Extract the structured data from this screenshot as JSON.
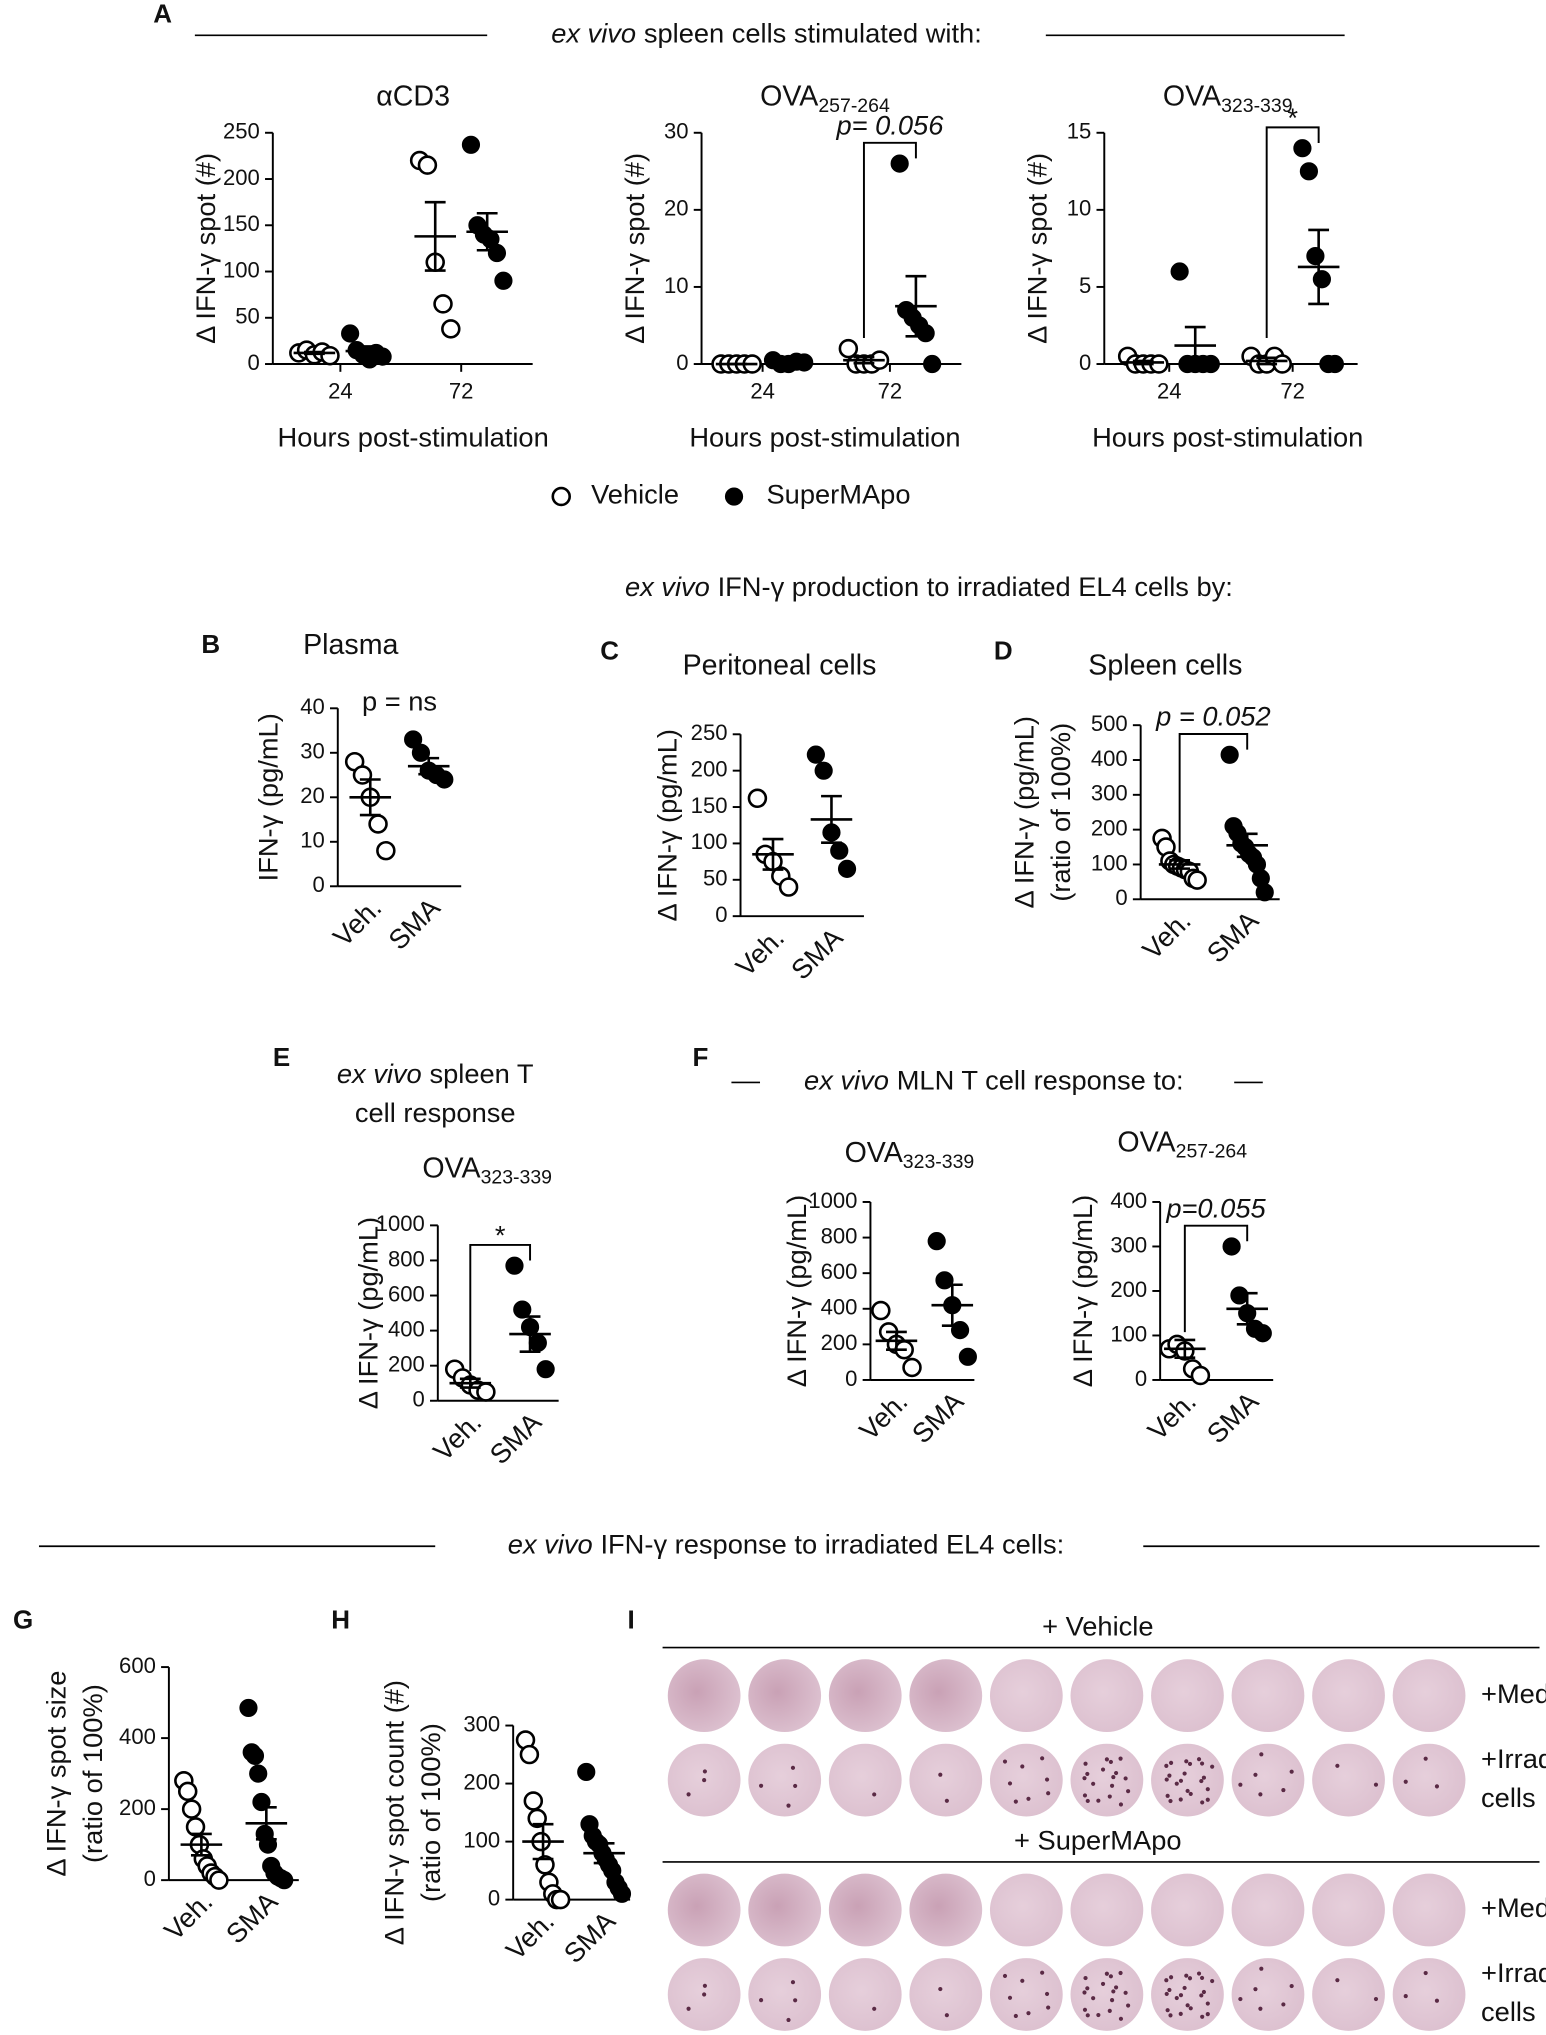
{
  "panels": [
    "A",
    "B",
    "C",
    "D",
    "E",
    "F",
    "G",
    "H",
    "I"
  ],
  "headers": [
    {
      "italic": "ex vivo",
      "text": "spleen cells stimulated with:"
    },
    {
      "italic": "ex vivo",
      "text": "IFN-γ production to irradiated EL4 cells by:"
    },
    {
      "italic": "ex vivo",
      "text": "spleen T",
      "line2": "cell response"
    },
    {
      "italic": "ex vivo",
      "text": "MLN T cell response to:"
    },
    {
      "italic": "ex vivo",
      "text": "IFN-γ response to irradiated EL4 cells:"
    }
  ],
  "legend": [
    {
      "name": "Vehicle",
      "style": "open"
    },
    {
      "name": "SuperMApo",
      "style": "filled"
    }
  ],
  "chart_data": [
    {
      "type": "dot",
      "title": "αCD3",
      "xlabel": "Hours post-stimulation",
      "ylabel": [
        "Δ IFN-γ spot (#)"
      ],
      "categories": [
        "24",
        "72"
      ],
      "ylim": [
        0,
        250
      ],
      "yticks": [
        0,
        50,
        100,
        150,
        200,
        250
      ],
      "groups": [
        {
          "style": "open",
          "values": [
            12,
            15,
            10,
            13,
            9
          ],
          "mean": 12,
          "sem": 1
        },
        {
          "style": "filled",
          "values": [
            33,
            15,
            10,
            5,
            12,
            8
          ],
          "mean": 14,
          "sem": 5
        },
        {
          "style": "open",
          "values": [
            220,
            215,
            110,
            65,
            38
          ],
          "mean": 138,
          "sem": 37
        },
        {
          "style": "filled",
          "values": [
            237,
            150,
            140,
            135,
            120,
            90
          ],
          "mean": 143,
          "sem": 20
        }
      ]
    },
    {
      "type": "dot",
      "title": "OVA",
      "title_sub": "257-264",
      "xlabel": "Hours post-stimulation",
      "ylabel": [
        "Δ IFN-γ spot (#)"
      ],
      "categories": [
        "24",
        "72"
      ],
      "ylim": [
        0,
        30
      ],
      "yticks": [
        0,
        10,
        20,
        30
      ],
      "groups": [
        {
          "style": "open",
          "values": [
            0,
            0,
            0,
            0,
            0
          ],
          "mean": 0,
          "sem": 0
        },
        {
          "style": "filled",
          "values": [
            0.5,
            0,
            0,
            0.3,
            0.2
          ],
          "mean": 0.2,
          "sem": 0.1
        },
        {
          "style": "open",
          "values": [
            2,
            0,
            0,
            0,
            0.5
          ],
          "mean": 0.5,
          "sem": 0.4
        },
        {
          "style": "filled",
          "values": [
            26,
            7,
            6,
            5,
            4,
            0
          ],
          "mean": 7.5,
          "sem": 3.9
        }
      ],
      "annotation": {
        "text": "p= 0.056",
        "italic": true,
        "bracket": true
      }
    },
    {
      "type": "dot",
      "title": "OVA",
      "title_sub": "323-339",
      "xlabel": "Hours post-stimulation",
      "ylabel": [
        "Δ IFN-γ spot (#)"
      ],
      "categories": [
        "24",
        "72"
      ],
      "ylim": [
        0,
        15
      ],
      "yticks": [
        0,
        5,
        10,
        15
      ],
      "groups": [
        {
          "style": "open",
          "values": [
            0.5,
            0,
            0,
            0,
            0
          ],
          "mean": 0.1,
          "sem": 0.1
        },
        {
          "style": "filled",
          "values": [
            6,
            0,
            0,
            0,
            0
          ],
          "mean": 1.2,
          "sem": 1.2
        },
        {
          "style": "open",
          "values": [
            0.5,
            0,
            0,
            0.5,
            0
          ],
          "mean": 0.2,
          "sem": 0.2
        },
        {
          "style": "filled",
          "values": [
            14,
            12.5,
            7,
            5.5,
            0,
            0
          ],
          "mean": 6.3,
          "sem": 2.4
        }
      ],
      "annotation": {
        "text": "*",
        "italic": false,
        "bracket": true
      }
    },
    {
      "type": "dot",
      "title": "Plasma",
      "ylabel": [
        "IFN-γ (pg/mL)"
      ],
      "categories": [
        "Veh.",
        "SMA"
      ],
      "ylim": [
        0,
        40
      ],
      "yticks": [
        0,
        10,
        20,
        30,
        40
      ],
      "groups": [
        {
          "style": "open",
          "values": [
            28,
            25,
            20,
            14,
            8
          ],
          "mean": 20,
          "sem": 4
        },
        {
          "style": "filled",
          "values": [
            33,
            30,
            26,
            25,
            24
          ],
          "mean": 27,
          "sem": 1.8
        }
      ],
      "annotation": {
        "text": "p = ns",
        "italic": false,
        "bracket": false
      }
    },
    {
      "type": "dot",
      "title": "Peritoneal cells",
      "ylabel": [
        "Δ IFN-γ (pg/mL)"
      ],
      "categories": [
        "Veh.",
        "SMA"
      ],
      "ylim": [
        0,
        250
      ],
      "yticks": [
        0,
        50,
        100,
        150,
        200,
        250
      ],
      "groups": [
        {
          "style": "open",
          "values": [
            162,
            85,
            75,
            55,
            40
          ],
          "mean": 85,
          "sem": 21
        },
        {
          "style": "filled",
          "values": [
            222,
            200,
            115,
            90,
            65
          ],
          "mean": 133,
          "sem": 32
        }
      ]
    },
    {
      "type": "dot",
      "title": "Spleen cells",
      "ylabel": [
        "Δ IFN-γ (pg/mL)",
        "(ratio of 100%)"
      ],
      "categories": [
        "Veh.",
        "SMA"
      ],
      "ylim": [
        0,
        500
      ],
      "yticks": [
        0,
        100,
        200,
        300,
        400,
        500
      ],
      "groups": [
        {
          "style": "open",
          "values": [
            175,
            150,
            110,
            100,
            95,
            90,
            85,
            80,
            60,
            55
          ],
          "mean": 100,
          "sem": 12
        },
        {
          "style": "filled",
          "values": [
            415,
            210,
            190,
            160,
            150,
            130,
            120,
            100,
            60,
            20
          ],
          "mean": 155,
          "sem": 33
        }
      ],
      "annotation": {
        "text": "p = 0.052",
        "italic": true,
        "bracket": true
      }
    },
    {
      "type": "dot",
      "title": "OVA",
      "title_sub": "323-339",
      "ylabel": [
        "Δ IFN-γ (pg/mL)"
      ],
      "categories": [
        "Veh.",
        "SMA"
      ],
      "ylim": [
        0,
        1000
      ],
      "yticks": [
        0,
        200,
        400,
        600,
        800,
        1000
      ],
      "groups": [
        {
          "style": "open",
          "values": [
            180,
            130,
            90,
            60,
            50
          ],
          "mean": 100,
          "sem": 25
        },
        {
          "style": "filled",
          "values": [
            770,
            520,
            420,
            330,
            180
          ],
          "mean": 380,
          "sem": 100
        }
      ],
      "annotation": {
        "text": "*",
        "italic": false,
        "bracket": true
      }
    },
    {
      "type": "dot",
      "title": "OVA",
      "title_sub": "323-339",
      "ylabel": [
        "Δ IFN-γ (pg/mL)"
      ],
      "categories": [
        "Veh.",
        "SMA"
      ],
      "ylim": [
        0,
        1000
      ],
      "yticks": [
        0,
        200,
        400,
        600,
        800,
        1000
      ],
      "groups": [
        {
          "style": "open",
          "values": [
            390,
            270,
            200,
            170,
            70
          ],
          "mean": 220,
          "sem": 50
        },
        {
          "style": "filled",
          "values": [
            780,
            560,
            420,
            280,
            130
          ],
          "mean": 420,
          "sem": 115
        }
      ]
    },
    {
      "type": "dot",
      "title": "OVA",
      "title_sub": "257-264",
      "ylabel": [
        "Δ IFN-γ (pg/mL)"
      ],
      "categories": [
        "Veh.",
        "SMA"
      ],
      "ylim": [
        0,
        400
      ],
      "yticks": [
        0,
        100,
        200,
        300,
        400
      ],
      "groups": [
        {
          "style": "open",
          "values": [
            70,
            80,
            65,
            25,
            10
          ],
          "mean": 70,
          "sem": 20
        },
        {
          "style": "filled",
          "values": [
            300,
            190,
            150,
            115,
            105
          ],
          "mean": 160,
          "sem": 35
        }
      ],
      "annotation": {
        "text": "p=0.055",
        "italic": true,
        "bracket": true
      }
    },
    {
      "type": "dot",
      "ylabel": [
        "Δ IFN-γ spot size",
        "(ratio of 100%)"
      ],
      "categories": [
        "Veh.",
        "SMA"
      ],
      "ylim": [
        0,
        600
      ],
      "yticks": [
        0,
        200,
        400,
        600
      ],
      "groups": [
        {
          "style": "open",
          "values": [
            280,
            250,
            200,
            150,
            100,
            60,
            40,
            20,
            10,
            0
          ],
          "mean": 100,
          "sem": 30
        },
        {
          "style": "filled",
          "values": [
            485,
            360,
            350,
            300,
            220,
            130,
            100,
            40,
            20,
            10,
            5,
            0
          ],
          "mean": 160,
          "sem": 45
        }
      ]
    },
    {
      "type": "dot",
      "ylabel": [
        "Δ IFN-γ spot count (#)",
        "(ratio of 100%)"
      ],
      "categories": [
        "Veh.",
        "SMA"
      ],
      "ylim": [
        0,
        300
      ],
      "yticks": [
        0,
        100,
        200,
        300
      ],
      "groups": [
        {
          "style": "open",
          "values": [
            275,
            250,
            170,
            140,
            100,
            60,
            30,
            10,
            0,
            0
          ],
          "mean": 100,
          "sem": 30
        },
        {
          "style": "filled",
          "values": [
            220,
            130,
            110,
            100,
            95,
            80,
            70,
            60,
            50,
            30,
            20,
            10
          ],
          "mean": 80,
          "sem": 17
        }
      ]
    }
  ],
  "panel_i": {
    "groups": [
      {
        "label": "+ Vehicle",
        "rows": [
          [
            "+Med."
          ],
          [
            "+Irrad.",
            "cells"
          ]
        ]
      },
      {
        "label": "+ SuperMApo",
        "rows": [
          [
            "+Med."
          ],
          [
            "+Irrad.",
            "cells"
          ]
        ]
      }
    ]
  }
}
